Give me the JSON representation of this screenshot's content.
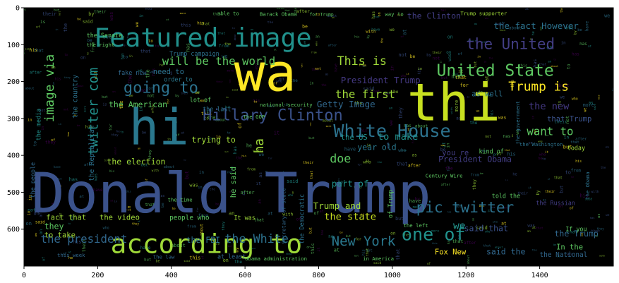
{
  "chart_data": {
    "type": "wordcloud",
    "x_ticks": [
      0,
      200,
      400,
      600,
      800,
      1000,
      1200,
      1400
    ],
    "y_ticks": [
      0,
      100,
      200,
      300,
      400,
      500,
      600
    ],
    "xlim": [
      0,
      1600
    ],
    "ylim": [
      0,
      700
    ],
    "background": "#000000",
    "palette": [
      "#440154",
      "#3b528b",
      "#21918c",
      "#5ec962",
      "#fde725",
      "#2c728e",
      "#a0da39"
    ],
    "words": [
      {
        "text": "Donald Trump",
        "x": 20,
        "y": 555,
        "size": 150,
        "color": "#3b528b"
      },
      {
        "text": "wa",
        "x": 570,
        "y": 225,
        "size": 140,
        "color": "#fde725"
      },
      {
        "text": "thi",
        "x": 1040,
        "y": 305,
        "size": 140,
        "color": "#c8e020"
      },
      {
        "text": "hi",
        "x": 285,
        "y": 370,
        "size": 135,
        "color": "#2a788e"
      },
      {
        "text": "Featured image",
        "x": 190,
        "y": 105,
        "size": 70,
        "color": "#21918c"
      },
      {
        "text": "according to",
        "x": 235,
        "y": 665,
        "size": 72,
        "color": "#a0da39"
      },
      {
        "text": "Hillary Clinton",
        "x": 485,
        "y": 305,
        "size": 42,
        "color": "#3b528b"
      },
      {
        "text": "White House",
        "x": 840,
        "y": 350,
        "size": 48,
        "color": "#2c728e"
      },
      {
        "text": "United State",
        "x": 1120,
        "y": 185,
        "size": 44,
        "color": "#5ec962"
      },
      {
        "text": "the United",
        "x": 1200,
        "y": 112,
        "size": 40,
        "color": "#433e85"
      },
      {
        "text": "going to",
        "x": 270,
        "y": 230,
        "size": 42,
        "color": "#2c728e"
      },
      {
        "text": "one of",
        "x": 1025,
        "y": 630,
        "size": 48,
        "color": "#21918c"
      },
      {
        "text": "twitter com",
        "x": 200,
        "y": 400,
        "size": 36,
        "color": "#21918c",
        "rotate": -90
      },
      {
        "text": "image via",
        "x": 80,
        "y": 310,
        "size": 34,
        "color": "#5ec962",
        "rotate": -90
      },
      {
        "text": "will be the world",
        "x": 375,
        "y": 155,
        "size": 30,
        "color": "#5ec962"
      },
      {
        "text": "This is",
        "x": 850,
        "y": 155,
        "size": 32,
        "color": "#a0da39"
      },
      {
        "text": "the first",
        "x": 845,
        "y": 245,
        "size": 30,
        "color": "#a0da39"
      },
      {
        "text": "Trump is",
        "x": 1315,
        "y": 225,
        "size": 34,
        "color": "#fde725"
      },
      {
        "text": "the new",
        "x": 1370,
        "y": 275,
        "size": 26,
        "color": "#443983"
      },
      {
        "text": "pic twitter",
        "x": 1065,
        "y": 555,
        "size": 40,
        "color": "#2c728e"
      },
      {
        "text": "the president",
        "x": 45,
        "y": 637,
        "size": 30,
        "color": "#31688e"
      },
      {
        "text": "the White",
        "x": 545,
        "y": 637,
        "size": 32,
        "color": "#2c728e"
      },
      {
        "text": "New York",
        "x": 835,
        "y": 645,
        "size": 36,
        "color": "#2a788e"
      },
      {
        "text": "fact that",
        "x": 60,
        "y": 575,
        "size": 20,
        "color": "#a0da39"
      },
      {
        "text": "the video",
        "x": 205,
        "y": 575,
        "size": 20,
        "color": "#a0da39"
      },
      {
        "text": "people who",
        "x": 395,
        "y": 575,
        "size": 18,
        "color": "#5ec962"
      },
      {
        "text": "the state",
        "x": 815,
        "y": 575,
        "size": 26,
        "color": "#c8e020"
      },
      {
        "text": "they",
        "x": 55,
        "y": 600,
        "size": 22,
        "color": "#5ec962"
      },
      {
        "text": "to take",
        "x": 55,
        "y": 623,
        "size": 20,
        "color": "#a0da39"
      },
      {
        "text": "the election",
        "x": 225,
        "y": 425,
        "size": 22,
        "color": "#a0da39"
      },
      {
        "text": "year old",
        "x": 905,
        "y": 385,
        "size": 22,
        "color": "#2a788e"
      },
      {
        "text": "the American",
        "x": 230,
        "y": 270,
        "size": 22,
        "color": "#5ec962"
      },
      {
        "text": "the FBI",
        "x": 440,
        "y": 637,
        "size": 22,
        "color": "#2c728e"
      },
      {
        "text": "trying to",
        "x": 455,
        "y": 365,
        "size": 22,
        "color": "#a0da39"
      },
      {
        "text": "to make",
        "x": 960,
        "y": 358,
        "size": 26,
        "color": "#21918c"
      },
      {
        "text": "the US",
        "x": 860,
        "y": 358,
        "size": 20,
        "color": "#21918c"
      },
      {
        "text": "doe",
        "x": 830,
        "y": 420,
        "size": 32,
        "color": "#5ec962"
      },
      {
        "text": "Getty Image",
        "x": 795,
        "y": 270,
        "size": 24,
        "color": "#31688e"
      },
      {
        "text": "want to",
        "x": 1365,
        "y": 345,
        "size": 30,
        "color": "#5ec962"
      },
      {
        "text": "Trump and",
        "x": 785,
        "y": 545,
        "size": 24,
        "color": "#a0da39"
      },
      {
        "text": "President Obama",
        "x": 1125,
        "y": 418,
        "size": 22,
        "color": "#433e85"
      },
      {
        "text": "President Trump",
        "x": 860,
        "y": 205,
        "size": 24,
        "color": "#443983"
      },
      {
        "text": "the fact However",
        "x": 1275,
        "y": 57,
        "size": 24,
        "color": "#2c728e"
      },
      {
        "text": "Fox New",
        "x": 1115,
        "y": 668,
        "size": 20,
        "color": "#fde725"
      },
      {
        "text": "said that",
        "x": 1195,
        "y": 605,
        "size": 22,
        "color": "#3b528b"
      },
      {
        "text": "In the",
        "x": 1445,
        "y": 655,
        "size": 20,
        "color": "#5ec962"
      },
      {
        "text": "the Trump",
        "x": 1440,
        "y": 620,
        "size": 22,
        "color": "#31688e"
      },
      {
        "text": "that Trump",
        "x": 1420,
        "y": 308,
        "size": 20,
        "color": "#3b528b"
      },
      {
        "text": "as well",
        "x": 1215,
        "y": 240,
        "size": 20,
        "color": "#2c728e"
      },
      {
        "text": "part of",
        "x": 835,
        "y": 485,
        "size": 24,
        "color": "#21918c"
      },
      {
        "text": "said the",
        "x": 1255,
        "y": 668,
        "size": 22,
        "color": "#31688e"
      },
      {
        "text": "the National",
        "x": 1400,
        "y": 675,
        "size": 18,
        "color": "#31688e"
      },
      {
        "text": "the Republican",
        "x": 190,
        "y": 470,
        "size": 18,
        "color": "#2c728e",
        "rotate": -90
      },
      {
        "text": "the country",
        "x": 145,
        "y": 300,
        "size": 18,
        "color": "#2c728e",
        "rotate": -90
      },
      {
        "text": "the people",
        "x": 30,
        "y": 515,
        "size": 16,
        "color": "#31688e",
        "rotate": -90
      },
      {
        "text": "the media",
        "x": 45,
        "y": 360,
        "size": 16,
        "color": "#21918c",
        "rotate": -90
      },
      {
        "text": "he said",
        "x": 575,
        "y": 515,
        "size": 20,
        "color": "#5ec962",
        "rotate": -90
      },
      {
        "text": "ha",
        "x": 650,
        "y": 395,
        "size": 34,
        "color": "#a0da39",
        "rotate": -90
      },
      {
        "text": "Secretary of State",
        "x": 710,
        "y": 640,
        "size": 14,
        "color": "#31688e",
        "rotate": -90
      },
      {
        "text": "the Democratic",
        "x": 760,
        "y": 640,
        "size": 16,
        "color": "#2c728e",
        "rotate": -90
      },
      {
        "text": "of Trump",
        "x": 1000,
        "y": 570,
        "size": 16,
        "color": "#5ec962",
        "rotate": -90
      },
      {
        "text": "we",
        "x": 1165,
        "y": 600,
        "size": 28,
        "color": "#21918c"
      },
      {
        "text": "the Senate",
        "x": 170,
        "y": 80,
        "size": 16,
        "color": "#5ec962"
      },
      {
        "text": "the right",
        "x": 170,
        "y": 105,
        "size": 14,
        "color": "#5ec962"
      },
      {
        "text": "need to",
        "x": 350,
        "y": 180,
        "size": 20,
        "color": "#2c728e"
      },
      {
        "text": "fake new",
        "x": 255,
        "y": 182,
        "size": 16,
        "color": "#31688e"
      },
      {
        "text": "order to",
        "x": 380,
        "y": 200,
        "size": 16,
        "color": "#2a788e"
      },
      {
        "text": "Barack Obama",
        "x": 640,
        "y": 22,
        "size": 14,
        "color": "#5ec962"
      },
      {
        "text": "for Trump",
        "x": 775,
        "y": 22,
        "size": 12,
        "color": "#5ec962"
      },
      {
        "text": "Trump supporter",
        "x": 1185,
        "y": 20,
        "size": 14,
        "color": "#a0da39"
      },
      {
        "text": "able to",
        "x": 525,
        "y": 20,
        "size": 14,
        "color": "#5ec962"
      },
      {
        "text": "way to",
        "x": 980,
        "y": 22,
        "size": 14,
        "color": "#5ec962"
      },
      {
        "text": "the Clinton",
        "x": 1040,
        "y": 30,
        "size": 22,
        "color": "#433e85"
      },
      {
        "text": "you re",
        "x": 1135,
        "y": 400,
        "size": 20,
        "color": "#433e85"
      },
      {
        "text": "the GOP",
        "x": 595,
        "y": 300,
        "size": 14,
        "color": "#5ec962"
      },
      {
        "text": "the last",
        "x": 485,
        "y": 280,
        "size": 16,
        "color": "#2c728e"
      },
      {
        "text": "lot of",
        "x": 450,
        "y": 255,
        "size": 16,
        "color": "#5ec962"
      },
      {
        "text": "It was",
        "x": 570,
        "y": 575,
        "size": 16,
        "color": "#a0da39"
      },
      {
        "text": "the time",
        "x": 390,
        "y": 525,
        "size": 14,
        "color": "#5ec962"
      },
      {
        "text": "national security",
        "x": 640,
        "y": 268,
        "size": 14,
        "color": "#5ec962"
      },
      {
        "text": "Trump campaign",
        "x": 395,
        "y": 130,
        "size": 16,
        "color": "#2c728e"
      },
      {
        "text": "at least",
        "x": 525,
        "y": 680,
        "size": 16,
        "color": "#31688e"
      },
      {
        "text": "the law",
        "x": 350,
        "y": 680,
        "size": 14,
        "color": "#31688e"
      },
      {
        "text": "this week",
        "x": 90,
        "y": 675,
        "size": 14,
        "color": "#31688e"
      },
      {
        "text": "Obama administration",
        "x": 600,
        "y": 685,
        "size": 14,
        "color": "#5ec962"
      },
      {
        "text": "in America",
        "x": 920,
        "y": 685,
        "size": 14,
        "color": "#5ec962"
      },
      {
        "text": "the left",
        "x": 1030,
        "y": 595,
        "size": 14,
        "color": "#5ec962"
      },
      {
        "text": "the Russian",
        "x": 1390,
        "y": 535,
        "size": 16,
        "color": "#433e85"
      },
      {
        "text": "told the",
        "x": 1270,
        "y": 515,
        "size": 16,
        "color": "#5ec962"
      },
      {
        "text": "kind of",
        "x": 1235,
        "y": 395,
        "size": 16,
        "color": "#5ec962"
      },
      {
        "text": "today",
        "x": 1475,
        "y": 385,
        "size": 16,
        "color": "#a0da39"
      },
      {
        "text": "the Washington",
        "x": 1345,
        "y": 375,
        "size": 14,
        "color": "#2c728e"
      },
      {
        "text": "Century Wire",
        "x": 1090,
        "y": 460,
        "size": 14,
        "color": "#5ec962"
      },
      {
        "text": "If you",
        "x": 1470,
        "y": 605,
        "size": 16,
        "color": "#5ec962"
      },
      {
        "text": "the Obama",
        "x": 1535,
        "y": 520,
        "size": 14,
        "color": "#2c728e",
        "rotate": -90
      },
      {
        "text": "the government",
        "x": 1345,
        "y": 370,
        "size": 14,
        "color": "#2c728e",
        "rotate": -90
      }
    ],
    "noise": [
      "the",
      "of",
      "to",
      "that",
      "in",
      "on",
      "it",
      "for",
      "said",
      "was",
      "is",
      "as",
      "by",
      "with",
      "he",
      "his",
      "at",
      "from",
      "they",
      "an",
      "be",
      "has",
      "who",
      "this",
      "not",
      "but",
      "we",
      "their",
      "more",
      "have",
      "about",
      "after"
    ]
  }
}
